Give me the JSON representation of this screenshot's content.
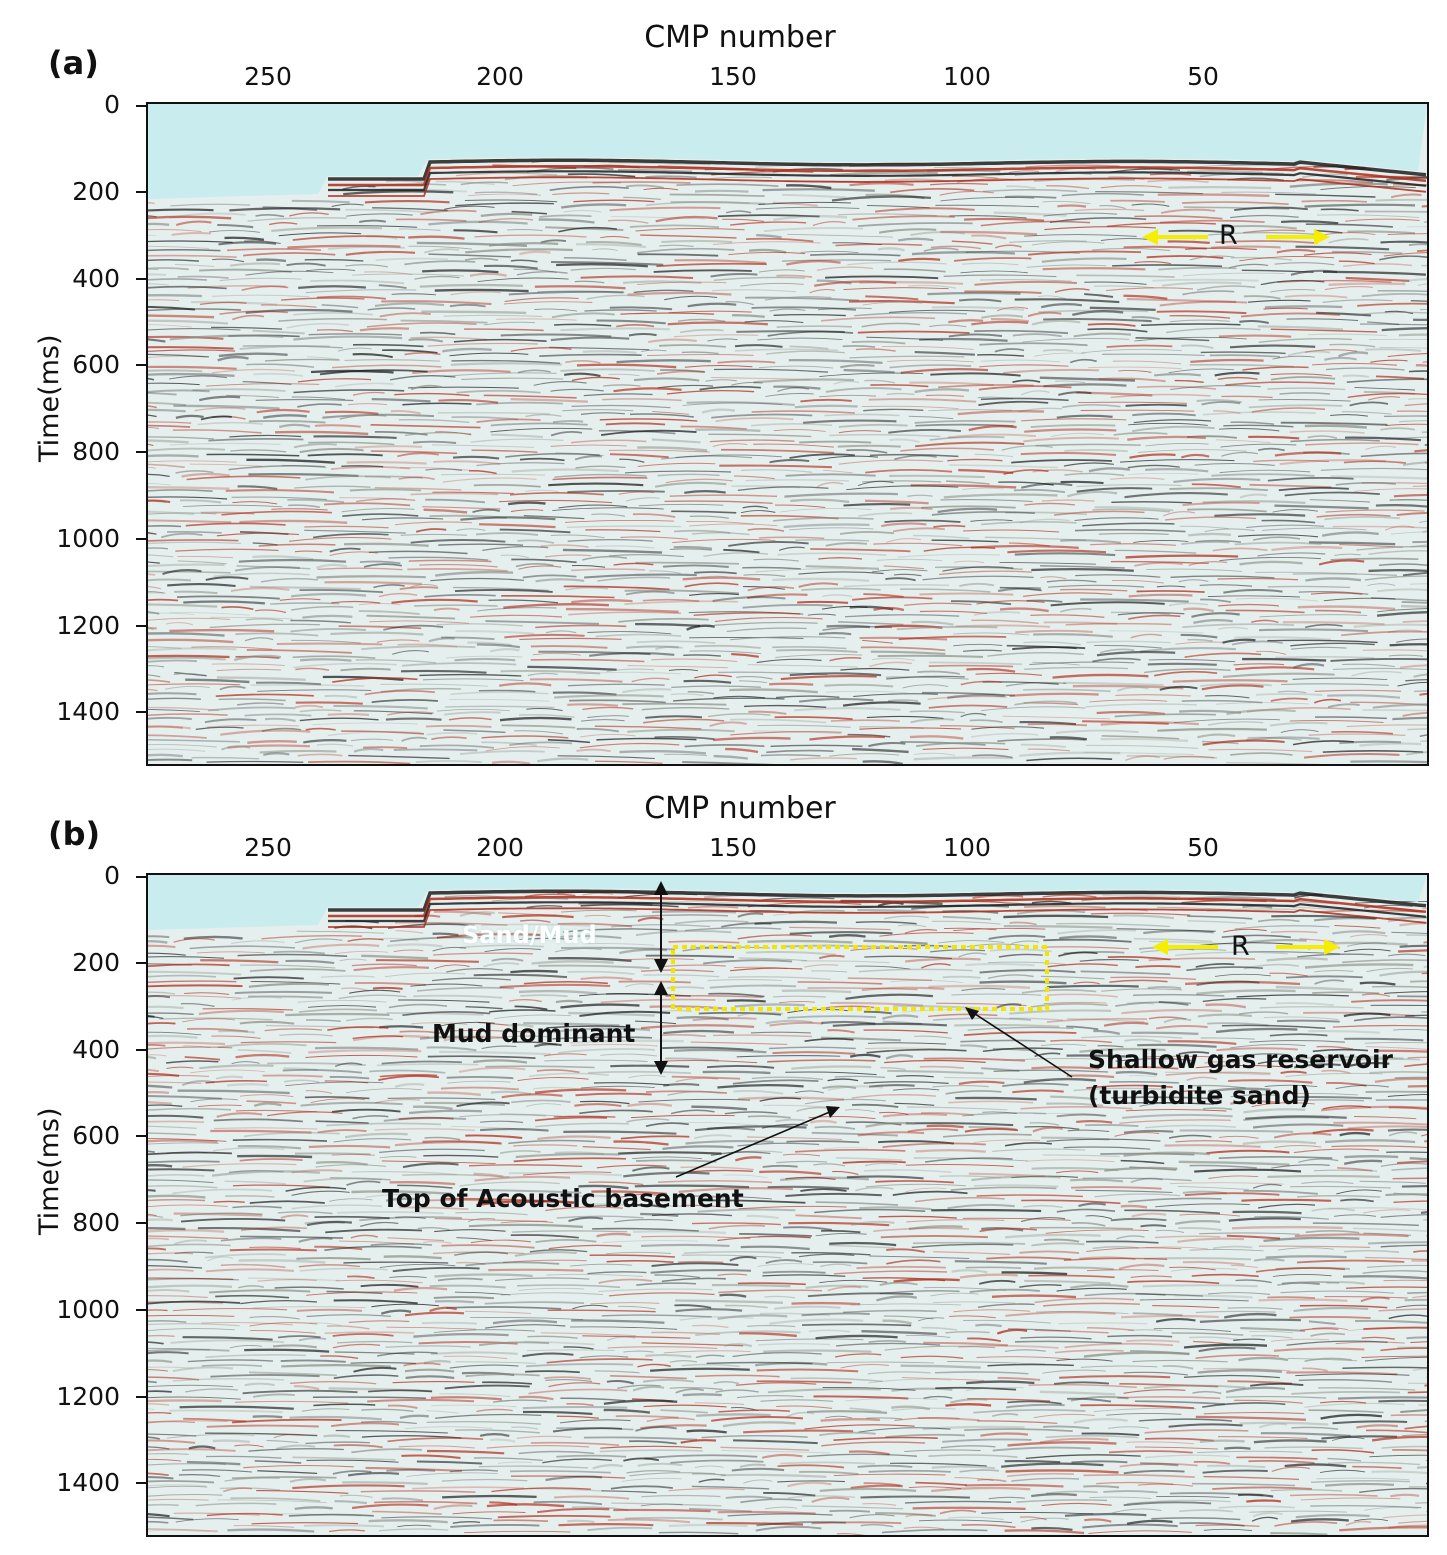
{
  "panels": [
    {
      "label": "(a)",
      "x_axis_title": "CMP number",
      "y_axis_title": "Time(ms)",
      "x_ticks": [
        "250",
        "200",
        "150",
        "100",
        "50"
      ],
      "y_ticks": [
        "0",
        "200",
        "400",
        "600",
        "800",
        "1000",
        "1200",
        "1400"
      ],
      "annotations": {
        "r_marker": "R"
      }
    },
    {
      "label": "(b)",
      "x_axis_title": "CMP number",
      "y_axis_title": "Time(ms)",
      "x_ticks": [
        "250",
        "200",
        "150",
        "100",
        "50"
      ],
      "y_ticks": [
        "0",
        "200",
        "400",
        "600",
        "800",
        "1000",
        "1200",
        "1400"
      ],
      "annotations": {
        "sand_mud": "Sand/Mud",
        "mud_dominant": "Mud dominant",
        "shallow_gas_line1": "Shallow gas reservoir",
        "shallow_gas_line2": "(turbidite sand)",
        "acoustic_basement": "Top of Acoustic basement",
        "r_marker": "R"
      }
    }
  ],
  "colors": {
    "water": "#c9ecef",
    "background": "#e5efee",
    "trough": "#1e1e1e",
    "peak": "#b02a18",
    "highlight_box": "#f2e600",
    "r_arrow": "#f5ee00"
  }
}
